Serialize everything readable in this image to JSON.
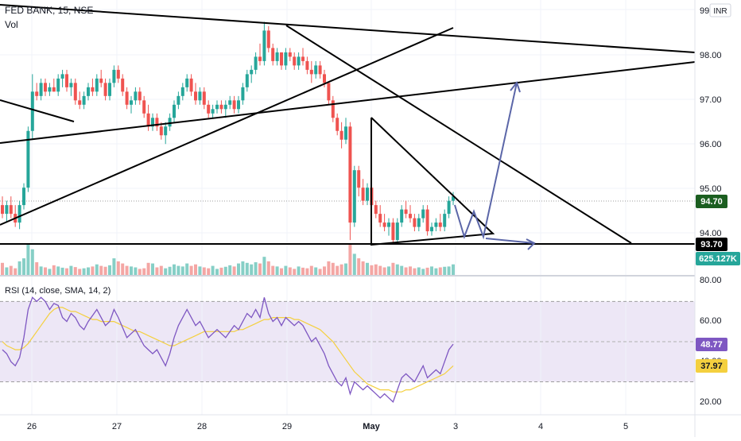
{
  "header": {
    "symbol_line": "FED BANK, 15, NSE",
    "volume_label": "Vol",
    "currency_badge": "INR",
    "top_cut_label": "99"
  },
  "chart_data": [
    {
      "type": "candlestick",
      "interval": "15",
      "y_axis": {
        "ticks": [
          "98.00",
          "97.00",
          "96.00",
          "95.00",
          "94.00"
        ],
        "range": [
          92.9,
          99.2
        ]
      },
      "x_axis": {
        "ticks": [
          "26",
          "27",
          "28",
          "29",
          "May",
          "3",
          "4",
          "5"
        ]
      },
      "price_labels": [
        {
          "value": "94.70",
          "color": "#1b5e20"
        },
        {
          "value": "93.70",
          "color": "#000000"
        }
      ],
      "volume_label": {
        "value": "625.127K",
        "color": "#26a69a"
      },
      "colors": {
        "up": "#26a69a",
        "down": "#ef5350",
        "vol_up": "#86cfc6",
        "vol_down": "#f4a6a4",
        "drawing": "#000000",
        "projection": "#5b66a8"
      },
      "ohlc": [
        [
          94.5,
          94.7,
          94.2,
          94.3
        ],
        [
          94.3,
          94.6,
          94.1,
          94.5
        ],
        [
          94.5,
          94.7,
          94.2,
          94.3
        ],
        [
          94.3,
          94.5,
          94.0,
          94.1
        ],
        [
          94.1,
          94.6,
          93.95,
          94.5
        ],
        [
          94.5,
          95.0,
          94.4,
          94.9
        ],
        [
          94.9,
          96.3,
          94.8,
          96.2
        ],
        [
          96.2,
          97.5,
          96.0,
          97.1
        ],
        [
          97.1,
          97.3,
          96.9,
          97.0
        ],
        [
          97.0,
          97.4,
          96.9,
          97.3
        ],
        [
          97.3,
          97.4,
          97.0,
          97.1
        ],
        [
          97.1,
          97.3,
          97.0,
          97.2
        ],
        [
          97.2,
          97.4,
          97.1,
          97.1
        ],
        [
          97.1,
          97.5,
          97.0,
          97.4
        ],
        [
          97.4,
          97.6,
          97.2,
          97.5
        ],
        [
          97.5,
          97.6,
          97.1,
          97.2
        ],
        [
          97.2,
          97.4,
          97.0,
          97.3
        ],
        [
          97.3,
          97.4,
          96.8,
          96.9
        ],
        [
          96.9,
          97.1,
          96.7,
          96.8
        ],
        [
          96.8,
          97.1,
          96.7,
          97.0
        ],
        [
          97.0,
          97.3,
          96.9,
          97.2
        ],
        [
          97.2,
          97.4,
          97.0,
          97.1
        ],
        [
          97.1,
          97.5,
          97.0,
          97.4
        ],
        [
          97.4,
          97.6,
          97.2,
          97.3
        ],
        [
          97.3,
          97.4,
          96.9,
          97.0
        ],
        [
          97.0,
          97.4,
          96.9,
          97.3
        ],
        [
          97.3,
          97.7,
          97.2,
          97.6
        ],
        [
          97.6,
          97.7,
          97.3,
          97.4
        ],
        [
          97.4,
          97.5,
          97.0,
          97.1
        ],
        [
          97.1,
          97.2,
          96.7,
          96.8
        ],
        [
          96.8,
          97.0,
          96.6,
          96.9
        ],
        [
          96.9,
          97.2,
          96.8,
          97.1
        ],
        [
          97.1,
          97.2,
          96.8,
          96.9
        ],
        [
          96.9,
          97.0,
          96.5,
          96.6
        ],
        [
          96.6,
          96.8,
          96.2,
          96.3
        ],
        [
          96.3,
          96.6,
          96.2,
          96.5
        ],
        [
          96.5,
          96.6,
          96.2,
          96.3
        ],
        [
          96.3,
          96.4,
          96.0,
          96.1
        ],
        [
          96.1,
          96.4,
          95.9,
          96.3
        ],
        [
          96.3,
          96.6,
          96.2,
          96.5
        ],
        [
          96.5,
          96.9,
          96.4,
          96.8
        ],
        [
          96.8,
          97.1,
          96.7,
          97.0
        ],
        [
          97.0,
          97.3,
          96.9,
          97.2
        ],
        [
          97.2,
          97.5,
          97.1,
          97.4
        ],
        [
          97.4,
          97.5,
          97.0,
          97.1
        ],
        [
          97.1,
          97.3,
          96.8,
          96.9
        ],
        [
          96.9,
          97.2,
          96.8,
          97.1
        ],
        [
          97.1,
          97.2,
          96.7,
          96.8
        ],
        [
          96.8,
          96.9,
          96.5,
          96.6
        ],
        [
          96.6,
          96.8,
          96.5,
          96.7
        ],
        [
          96.7,
          96.9,
          96.6,
          96.8
        ],
        [
          96.8,
          96.9,
          96.6,
          96.7
        ],
        [
          96.7,
          96.9,
          96.5,
          96.8
        ],
        [
          96.8,
          97.0,
          96.7,
          96.9
        ],
        [
          96.9,
          97.0,
          96.6,
          96.7
        ],
        [
          96.7,
          97.0,
          96.6,
          96.9
        ],
        [
          96.9,
          97.3,
          96.8,
          97.2
        ],
        [
          97.2,
          97.6,
          97.1,
          97.5
        ],
        [
          97.5,
          97.7,
          97.3,
          97.6
        ],
        [
          97.6,
          98.0,
          97.5,
          97.9
        ],
        [
          97.9,
          98.2,
          97.7,
          97.8
        ],
        [
          97.8,
          98.7,
          97.7,
          98.5
        ],
        [
          98.5,
          98.6,
          98.0,
          98.1
        ],
        [
          98.1,
          98.2,
          97.7,
          97.8
        ],
        [
          97.8,
          98.1,
          97.7,
          98.0
        ],
        [
          98.0,
          98.0,
          97.6,
          97.7
        ],
        [
          97.7,
          98.1,
          97.6,
          98.0
        ],
        [
          98.0,
          98.1,
          97.8,
          97.9
        ],
        [
          97.9,
          98.0,
          97.6,
          97.7
        ],
        [
          97.7,
          98.0,
          97.6,
          97.9
        ],
        [
          97.9,
          98.1,
          97.7,
          97.8
        ],
        [
          97.8,
          97.9,
          97.5,
          97.6
        ],
        [
          97.6,
          97.8,
          97.3,
          97.5
        ],
        [
          97.5,
          97.8,
          97.4,
          97.7
        ],
        [
          97.7,
          97.8,
          97.4,
          97.5
        ],
        [
          97.5,
          97.6,
          97.2,
          97.3
        ],
        [
          97.3,
          97.3,
          96.8,
          96.9
        ],
        [
          96.9,
          97.0,
          96.4,
          96.5
        ],
        [
          96.5,
          96.6,
          96.1,
          96.2
        ],
        [
          96.2,
          96.4,
          95.8,
          96.0
        ],
        [
          96.0,
          96.5,
          95.9,
          96.3
        ],
        [
          96.3,
          96.4,
          93.7,
          94.1
        ],
        [
          94.1,
          95.4,
          94.0,
          95.3
        ],
        [
          95.3,
          95.4,
          94.7,
          94.9
        ],
        [
          94.9,
          95.1,
          94.5,
          94.6
        ],
        [
          94.6,
          95.0,
          94.5,
          94.9
        ],
        [
          94.9,
          95.0,
          94.4,
          94.5
        ],
        [
          94.5,
          94.6,
          94.2,
          94.3
        ],
        [
          94.3,
          94.5,
          94.0,
          94.1
        ],
        [
          94.1,
          94.3,
          93.9,
          94.0
        ],
        [
          94.0,
          94.2,
          93.8,
          94.1
        ],
        [
          94.1,
          94.2,
          93.6,
          93.7
        ],
        [
          93.7,
          94.2,
          93.6,
          94.1
        ],
        [
          94.1,
          94.5,
          94.0,
          94.4
        ],
        [
          94.4,
          94.6,
          94.2,
          94.3
        ],
        [
          94.3,
          94.5,
          94.1,
          94.2
        ],
        [
          94.2,
          94.3,
          93.9,
          94.0
        ],
        [
          94.0,
          94.3,
          93.9,
          94.2
        ],
        [
          94.2,
          94.5,
          94.1,
          94.4
        ],
        [
          94.4,
          94.5,
          93.8,
          93.9
        ],
        [
          93.9,
          94.1,
          93.8,
          94.0
        ],
        [
          94.0,
          94.2,
          93.9,
          94.1
        ],
        [
          94.1,
          94.3,
          93.9,
          94.0
        ],
        [
          94.0,
          94.4,
          93.9,
          94.3
        ],
        [
          94.3,
          94.7,
          94.2,
          94.6
        ],
        [
          94.6,
          94.8,
          94.5,
          94.7
        ]
      ],
      "volume_values": [
        40,
        25,
        30,
        22,
        45,
        55,
        100,
        85,
        42,
        28,
        25,
        20,
        32,
        28,
        24,
        22,
        30,
        26,
        20,
        22,
        25,
        28,
        35,
        30,
        27,
        32,
        55,
        45,
        38,
        30,
        28,
        25,
        20,
        22,
        40,
        38,
        25,
        30,
        22,
        27,
        35,
        30,
        28,
        38,
        30,
        35,
        28,
        25,
        22,
        30,
        20,
        24,
        27,
        32,
        28,
        38,
        45,
        40,
        35,
        42,
        38,
        60,
        45,
        30,
        28,
        22,
        30,
        25,
        20,
        28,
        24,
        22,
        30,
        25,
        20,
        28,
        45,
        40,
        30,
        35,
        38,
        100,
        70,
        55,
        45,
        40,
        32,
        35,
        30,
        25,
        28,
        40,
        35,
        30,
        25,
        28,
        22,
        25,
        20,
        24,
        28,
        22,
        25,
        27,
        28,
        35
      ]
    },
    {
      "type": "line",
      "title": "RSI (14, close, SMA, 14, 2)",
      "y_axis": {
        "ticks": [
          "80.00",
          "60.00",
          "40.00",
          "20.00"
        ],
        "range": [
          14,
          82
        ]
      },
      "bands": {
        "upper": 70,
        "middle": 50,
        "lower": 30,
        "fill": "#ede7f6"
      },
      "series": [
        {
          "role": "rsi",
          "color": "#7e57c2",
          "label_value": "48.77",
          "values": [
            46,
            44,
            40,
            38,
            42,
            52,
            66,
            72,
            70,
            72,
            70,
            66,
            69,
            68,
            62,
            60,
            64,
            62,
            58,
            56,
            60,
            63,
            66,
            62,
            58,
            60,
            66,
            62,
            57,
            52,
            54,
            56,
            52,
            48,
            46,
            44,
            46,
            42,
            38,
            44,
            52,
            58,
            62,
            66,
            62,
            58,
            60,
            56,
            52,
            54,
            56,
            54,
            52,
            55,
            58,
            56,
            60,
            64,
            62,
            66,
            62,
            72,
            64,
            60,
            62,
            58,
            62,
            60,
            58,
            60,
            58,
            54,
            50,
            52,
            48,
            44,
            38,
            34,
            30,
            28,
            32,
            24,
            30,
            28,
            26,
            28,
            26,
            24,
            22,
            24,
            22,
            20,
            26,
            32,
            34,
            32,
            30,
            34,
            38,
            32,
            34,
            36,
            34,
            40,
            46,
            48.77
          ]
        },
        {
          "role": "rsi_sma",
          "color": "#f4d03f",
          "label_value": "37.97",
          "values": [
            50,
            48,
            47,
            46,
            46,
            47,
            49,
            52,
            55,
            58,
            61,
            64,
            66,
            67,
            67,
            66,
            65,
            65,
            64,
            63,
            62,
            61,
            61,
            60,
            60,
            60,
            60,
            59,
            58,
            57,
            56,
            55,
            55,
            54,
            53,
            52,
            51,
            50,
            49,
            48,
            48,
            49,
            50,
            51,
            52,
            53,
            54,
            55,
            55,
            55,
            55,
            55,
            55,
            55,
            55,
            56,
            56,
            57,
            58,
            59,
            60,
            61,
            61,
            62,
            62,
            62,
            62,
            62,
            61,
            61,
            60,
            59,
            58,
            57,
            56,
            54,
            52,
            50,
            47,
            44,
            41,
            38,
            35,
            33,
            31,
            29,
            28,
            27,
            26,
            26,
            26,
            25,
            25,
            25,
            26,
            26,
            27,
            28,
            29,
            30,
            31,
            32,
            33,
            34,
            36,
            37.97
          ]
        }
      ]
    }
  ]
}
